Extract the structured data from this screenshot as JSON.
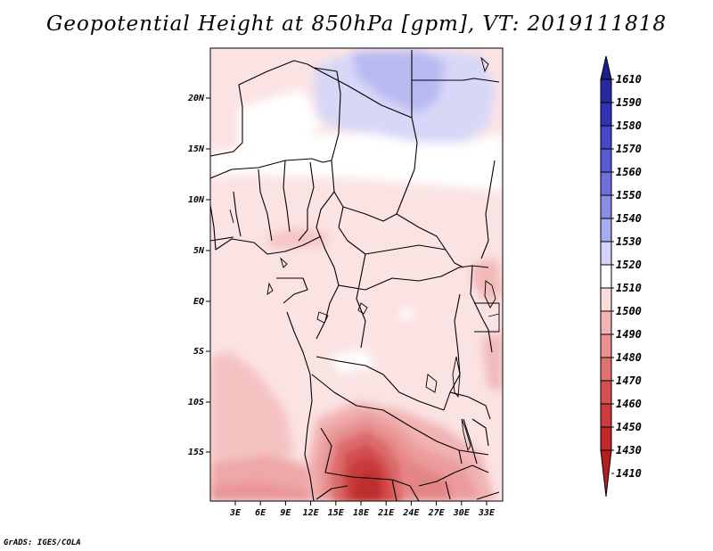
{
  "title": "Geopotential Height at 850hPa [gpm], VT: 2019111818",
  "credit": "GrADS: IGES/COLA",
  "map": {
    "lat_ticks": [
      "20N",
      "15N",
      "10N",
      "5N",
      "EQ",
      "5S",
      "10S",
      "15S"
    ],
    "lon_ticks": [
      "3E",
      "6E",
      "9E",
      "12E",
      "15E",
      "18E",
      "21E",
      "24E",
      "27E",
      "30E",
      "33E"
    ]
  },
  "colorbar": {
    "levels": [
      "1610",
      "1590",
      "1580",
      "1570",
      "1560",
      "1550",
      "1540",
      "1530",
      "1520",
      "1510",
      "1500",
      "1490",
      "1480",
      "1470",
      "1460",
      "1450",
      "1430",
      "1410"
    ],
    "colors": [
      "#1e1e8c",
      "#2828a0",
      "#3232b4",
      "#4646c8",
      "#5a5ad2",
      "#7070dc",
      "#8c8ce6",
      "#aaaaf0",
      "#d2d2fa",
      "#ffffff",
      "#fadcdc",
      "#f5b4b4",
      "#eb9191",
      "#e17070",
      "#d75050",
      "#cd3c3c",
      "#c32828",
      "#b41e1e"
    ]
  }
}
